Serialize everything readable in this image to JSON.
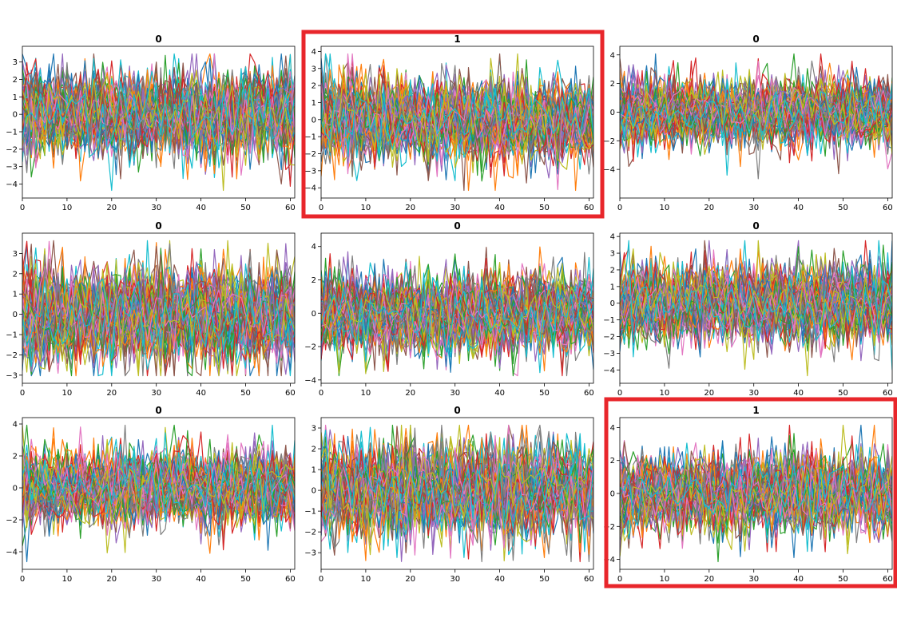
{
  "chart_data": [
    {
      "type": "line",
      "title": "0",
      "xlim": [
        0,
        61
      ],
      "ylim": [
        -4.8,
        3.9
      ],
      "xticks": [
        0,
        10,
        20,
        30,
        40,
        50,
        60
      ],
      "yticks": [
        -4,
        -3,
        -2,
        -1,
        0,
        1,
        2,
        3
      ],
      "series_count": 80,
      "highlighted": false
    },
    {
      "type": "line",
      "title": "1",
      "xlim": [
        0,
        61
      ],
      "ylim": [
        -4.6,
        4.3
      ],
      "xticks": [
        0,
        10,
        20,
        30,
        40,
        50,
        60
      ],
      "yticks": [
        -4,
        -3,
        -2,
        -1,
        0,
        1,
        2,
        3,
        4
      ],
      "series_count": 80,
      "highlighted": true
    },
    {
      "type": "line",
      "title": "0",
      "xlim": [
        0,
        61
      ],
      "ylim": [
        -6,
        4.6
      ],
      "xticks": [
        0,
        10,
        20,
        30,
        40,
        50,
        60
      ],
      "yticks": [
        -4,
        -2,
        0,
        2,
        4
      ],
      "series_count": 80,
      "highlighted": false
    },
    {
      "type": "line",
      "title": "0",
      "xlim": [
        0,
        61
      ],
      "ylim": [
        -3.4,
        4.0
      ],
      "xticks": [
        0,
        10,
        20,
        30,
        40,
        50,
        60
      ],
      "yticks": [
        -3,
        -2,
        -1,
        0,
        1,
        2,
        3
      ],
      "series_count": 80,
      "highlighted": false
    },
    {
      "type": "line",
      "title": "0",
      "xlim": [
        0,
        61
      ],
      "ylim": [
        -4.2,
        4.8
      ],
      "xticks": [
        0,
        10,
        20,
        30,
        40,
        50,
        60
      ],
      "yticks": [
        -4,
        -2,
        0,
        2,
        4
      ],
      "series_count": 80,
      "highlighted": false
    },
    {
      "type": "line",
      "title": "0",
      "xlim": [
        0,
        61
      ],
      "ylim": [
        -4.8,
        4.2
      ],
      "xticks": [
        0,
        10,
        20,
        30,
        40,
        50,
        60
      ],
      "yticks": [
        -4,
        -3,
        -2,
        -1,
        0,
        1,
        2,
        3,
        4
      ],
      "series_count": 80,
      "highlighted": false
    },
    {
      "type": "line",
      "title": "0",
      "xlim": [
        0,
        61
      ],
      "ylim": [
        -5.1,
        4.4
      ],
      "xticks": [
        0,
        10,
        20,
        30,
        40,
        50,
        60
      ],
      "yticks": [
        -4,
        -2,
        0,
        2,
        4
      ],
      "series_count": 80,
      "highlighted": false
    },
    {
      "type": "line",
      "title": "0",
      "xlim": [
        0,
        61
      ],
      "ylim": [
        -3.8,
        3.5
      ],
      "xticks": [
        0,
        10,
        20,
        30,
        40,
        50,
        60
      ],
      "yticks": [
        -3,
        -2,
        -1,
        0,
        1,
        2,
        3
      ],
      "series_count": 80,
      "highlighted": false
    },
    {
      "type": "line",
      "title": "1",
      "xlim": [
        0,
        61
      ],
      "ylim": [
        -4.6,
        4.6
      ],
      "xticks": [
        0,
        10,
        20,
        30,
        40,
        50,
        60
      ],
      "yticks": [
        -4,
        -2,
        0,
        2,
        4
      ],
      "series_count": 80,
      "highlighted": true
    }
  ],
  "colors": {
    "series": [
      "#1f77b4",
      "#ff7f0e",
      "#2ca02c",
      "#d62728",
      "#9467bd",
      "#8c564b",
      "#e377c2",
      "#7f7f7f",
      "#bcbd22",
      "#17becf"
    ],
    "highlight_border": "#e8262b"
  }
}
